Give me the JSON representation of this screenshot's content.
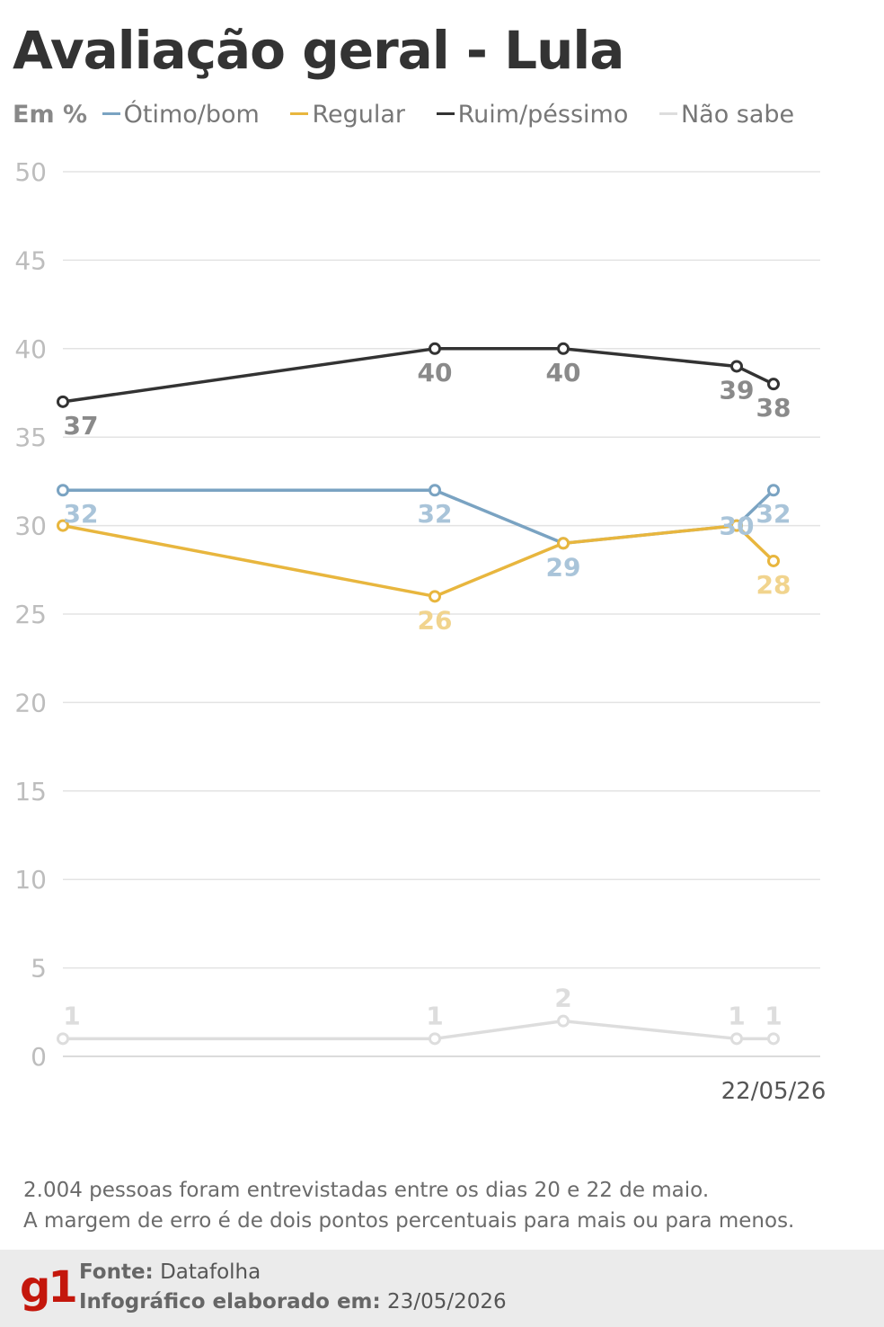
{
  "title": "Avaliação geral - Lula",
  "legend": {
    "unit": "Em %",
    "items": [
      {
        "label": "Ótimo/bom",
        "color": "#7aa3c2"
      },
      {
        "label": "Regular",
        "color": "#e8b63e"
      },
      {
        "label": "Ruim/péssimo",
        "color": "#333333"
      },
      {
        "label": "Não sabe",
        "color": "#dddddd"
      }
    ]
  },
  "chart_data": {
    "type": "line",
    "title": "Avaliação geral - Lula",
    "ylabel": "Em %",
    "ylim": [
      0,
      50
    ],
    "yticks": [
      0,
      5,
      10,
      15,
      20,
      25,
      30,
      35,
      40,
      45,
      50
    ],
    "grid": true,
    "x_tick_labels": [
      "",
      "",
      "",
      "",
      "22/05/26"
    ],
    "series": [
      {
        "name": "Ótimo/bom",
        "color": "#7aa3c2",
        "label_color": "#a9c4d9",
        "values": [
          32,
          32,
          29,
          30,
          32
        ]
      },
      {
        "name": "Regular",
        "color": "#e8b63e",
        "label_color": "#f1d48e",
        "values": [
          30,
          26,
          29,
          30,
          28
        ]
      },
      {
        "name": "Ruim/péssimo",
        "color": "#333333",
        "label_color": "#8a8a8a",
        "values": [
          37,
          40,
          40,
          39,
          38
        ]
      },
      {
        "name": "Não sabe",
        "color": "#dddddd",
        "label_color": "#dddddd",
        "values": [
          1,
          1,
          2,
          1,
          1
        ]
      }
    ]
  },
  "notes": {
    "line1": "2.004 pessoas foram entrevistadas entre os dias 20 e 22 de maio.",
    "line2": "A margem de erro é de dois pontos percentuais para mais ou para menos."
  },
  "footer": {
    "logo": "g1",
    "source_label": "Fonte:",
    "source_value": "Datafolha",
    "date_label": "Infográfico elaborado em:",
    "date_value": "23/05/2026"
  }
}
